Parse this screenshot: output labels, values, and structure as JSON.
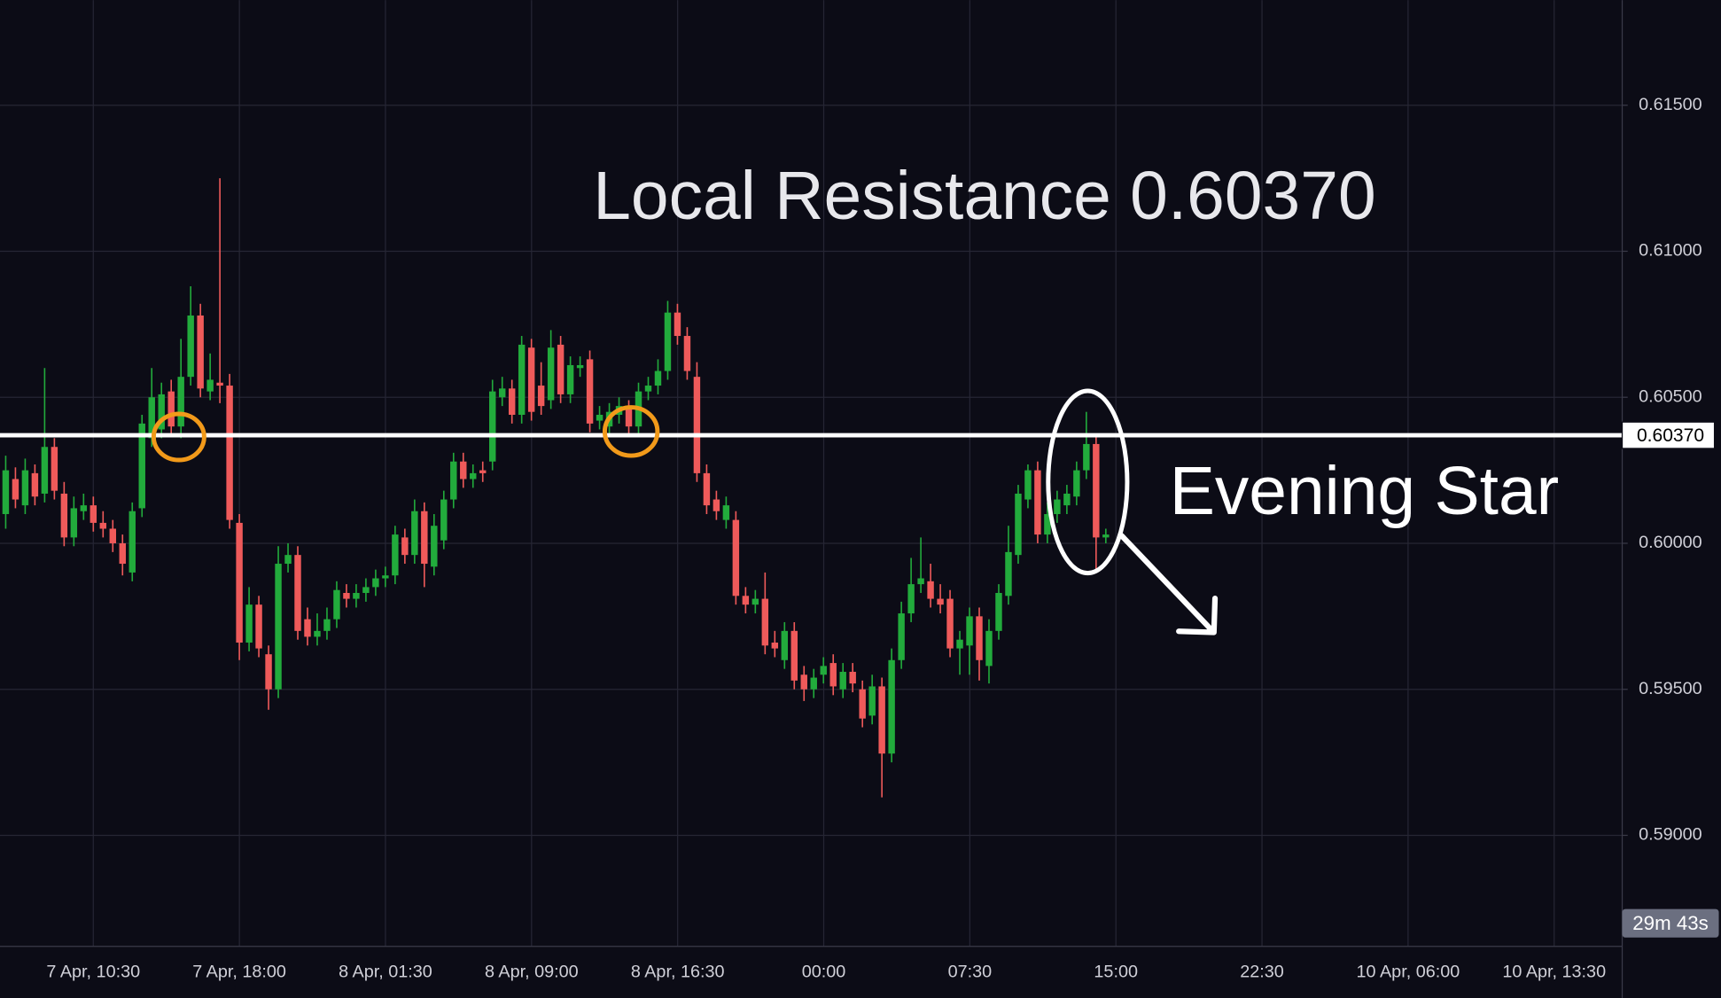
{
  "chart_data": {
    "type": "candlestick",
    "annotations": {
      "title": "Local Resistance 0.60370",
      "pattern": "Evening Star",
      "countdown": "29m 43s"
    },
    "resistance": {
      "value": 0.6037,
      "label": "0.60370"
    },
    "up_color": "#22ab3c",
    "down_color": "#ef5a5a",
    "ylim": [
      0.5862,
      0.6186
    ],
    "yticks": [
      {
        "value": 0.59,
        "label": "0.59000"
      },
      {
        "value": 0.595,
        "label": "0.59500"
      },
      {
        "value": 0.6,
        "label": "0.60000"
      },
      {
        "value": 0.605,
        "label": "0.60500"
      },
      {
        "value": 0.61,
        "label": "0.61000"
      },
      {
        "value": 0.615,
        "label": "0.61500"
      }
    ],
    "xticks": [
      "7 Apr, 10:30",
      "7 Apr, 18:00",
      "8 Apr, 01:30",
      "8 Apr, 09:00",
      "8 Apr, 16:30",
      "00:00",
      "07:30",
      "15:00",
      "22:30",
      "10 Apr, 06:00",
      "10 Apr, 13:30"
    ],
    "grid": true,
    "open": [
      0.601,
      0.6022,
      0.6013,
      0.6024,
      0.6017,
      0.6033,
      0.6017,
      0.6002,
      0.6011,
      0.6013,
      0.6007,
      0.6005,
      0.6,
      0.599,
      0.6012,
      0.6036,
      0.6039,
      0.6052,
      0.604,
      0.6057,
      0.6078,
      0.6052,
      0.6055,
      0.6054,
      0.6007,
      0.5966,
      0.5979,
      0.5962,
      0.595,
      0.5993,
      0.5996,
      0.5974,
      0.5968,
      0.597,
      0.5974,
      0.5983,
      0.5981,
      0.5983,
      0.5985,
      0.5988,
      0.5989,
      0.6002,
      0.5996,
      0.6011,
      0.5992,
      0.6001,
      0.6015,
      0.6028,
      0.6022,
      0.6025,
      0.6028,
      0.605,
      0.6053,
      0.6044,
      0.6067,
      0.6054,
      0.6049,
      0.6068,
      0.6051,
      0.606,
      0.6063,
      0.6042,
      0.604,
      0.6044,
      0.6046,
      0.604,
      0.6052,
      0.6054,
      0.6059,
      0.6079,
      0.6071,
      0.6057,
      0.6024,
      0.6015,
      0.6008,
      0.6008,
      0.5982,
      0.5979,
      0.5981,
      0.5966,
      0.596,
      0.597,
      0.5955,
      0.595,
      0.5955,
      0.5959,
      0.595,
      0.5956,
      0.595,
      0.5941,
      0.5951,
      0.5928,
      0.596,
      0.5976,
      0.5986,
      0.5987,
      0.5981,
      0.5981,
      0.5964,
      0.5965,
      0.5975,
      0.5958,
      0.597,
      0.5982,
      0.5996,
      0.6015,
      0.6025,
      0.6003,
      0.601,
      0.6013,
      0.6016,
      0.6025,
      0.6034,
      0.6002
    ],
    "high": [
      0.603,
      0.6026,
      0.6029,
      0.6027,
      0.606,
      0.6036,
      0.6021,
      0.6016,
      0.6017,
      0.6016,
      0.6011,
      0.6008,
      0.6003,
      0.6014,
      0.6044,
      0.606,
      0.6055,
      0.6056,
      0.607,
      0.6088,
      0.6082,
      0.6065,
      0.6125,
      0.6058,
      0.601,
      0.5985,
      0.5982,
      0.5965,
      0.5999,
      0.6,
      0.5999,
      0.5978,
      0.5976,
      0.5978,
      0.5987,
      0.5986,
      0.5986,
      0.5988,
      0.5991,
      0.5992,
      0.6006,
      0.6005,
      0.6015,
      0.6014,
      0.601,
      0.6018,
      0.6031,
      0.6031,
      0.6027,
      0.6028,
      0.6056,
      0.6057,
      0.6056,
      0.6071,
      0.607,
      0.6062,
      0.6073,
      0.6071,
      0.6064,
      0.6064,
      0.6066,
      0.6047,
      0.6048,
      0.605,
      0.6049,
      0.6055,
      0.6057,
      0.6063,
      0.6083,
      0.6082,
      0.6074,
      0.6062,
      0.6027,
      0.6018,
      0.6016,
      0.6011,
      0.5985,
      0.5984,
      0.599,
      0.597,
      0.5973,
      0.5973,
      0.5958,
      0.5957,
      0.5961,
      0.5962,
      0.5959,
      0.5959,
      0.5953,
      0.5955,
      0.5954,
      0.5964,
      0.598,
      0.5995,
      0.6002,
      0.5993,
      0.5986,
      0.5984,
      0.597,
      0.5978,
      0.5978,
      0.5974,
      0.5986,
      0.6006,
      0.602,
      0.6027,
      0.6028,
      0.6014,
      0.6018,
      0.602,
      0.6028,
      0.6045,
      0.6037,
      0.6005
    ],
    "low": [
      0.6005,
      0.6012,
      0.601,
      0.6013,
      0.6014,
      0.6015,
      0.5999,
      0.5999,
      0.6008,
      0.6004,
      0.6002,
      0.5997,
      0.5989,
      0.5987,
      0.6009,
      0.6033,
      0.6036,
      0.6037,
      0.6036,
      0.6054,
      0.605,
      0.6049,
      0.6048,
      0.6005,
      0.596,
      0.5963,
      0.5961,
      0.5943,
      0.5947,
      0.599,
      0.5967,
      0.5965,
      0.5965,
      0.5967,
      0.5971,
      0.5978,
      0.5978,
      0.598,
      0.5982,
      0.5985,
      0.5986,
      0.5993,
      0.5993,
      0.5985,
      0.5989,
      0.5998,
      0.6012,
      0.6019,
      0.6019,
      0.6021,
      0.6025,
      0.6047,
      0.6041,
      0.6041,
      0.6042,
      0.6044,
      0.6046,
      0.6048,
      0.6048,
      0.6057,
      0.6038,
      0.6039,
      0.6037,
      0.6041,
      0.6037,
      0.6037,
      0.6049,
      0.6051,
      0.6056,
      0.6068,
      0.6056,
      0.6021,
      0.601,
      0.6008,
      0.6005,
      0.5979,
      0.5976,
      0.5976,
      0.5962,
      0.5961,
      0.5957,
      0.595,
      0.5946,
      0.5947,
      0.5952,
      0.5948,
      0.5947,
      0.5949,
      0.5937,
      0.5938,
      0.5913,
      0.5925,
      0.5957,
      0.5973,
      0.5983,
      0.5978,
      0.5976,
      0.5961,
      0.5955,
      0.5955,
      0.5953,
      0.5952,
      0.5967,
      0.5979,
      0.5993,
      0.6012,
      0.6,
      0.6,
      0.6007,
      0.601,
      0.6013,
      0.6022,
      0.599,
      0.6
    ],
    "close": [
      0.6025,
      0.6015,
      0.6025,
      0.6016,
      0.6033,
      0.6018,
      0.6002,
      0.6012,
      0.6013,
      0.6007,
      0.6005,
      0.6,
      0.5993,
      0.6011,
      0.6041,
      0.605,
      0.6051,
      0.604,
      0.6057,
      0.6078,
      0.6053,
      0.6056,
      0.6054,
      0.6008,
      0.5966,
      0.5979,
      0.5964,
      0.595,
      0.5993,
      0.5996,
      0.597,
      0.5968,
      0.597,
      0.5974,
      0.5984,
      0.5981,
      0.5983,
      0.5985,
      0.5988,
      0.5989,
      0.6003,
      0.5996,
      0.6011,
      0.5993,
      0.6006,
      0.6015,
      0.6028,
      0.6022,
      0.6024,
      0.6024,
      0.6052,
      0.6053,
      0.6044,
      0.6068,
      0.6045,
      0.6047,
      0.6067,
      0.6051,
      0.6061,
      0.6061,
      0.6041,
      0.6044,
      0.6045,
      0.6047,
      0.604,
      0.6052,
      0.6054,
      0.6059,
      0.6079,
      0.6071,
      0.6059,
      0.6024,
      0.6013,
      0.6011,
      0.6013,
      0.5982,
      0.5979,
      0.5981,
      0.5965,
      0.5964,
      0.597,
      0.5953,
      0.595,
      0.5954,
      0.5958,
      0.5951,
      0.5956,
      0.5952,
      0.594,
      0.5951,
      0.5928,
      0.596,
      0.5976,
      0.5986,
      0.5988,
      0.5981,
      0.5979,
      0.5964,
      0.5967,
      0.5975,
      0.596,
      0.597,
      0.5983,
      0.5997,
      0.6017,
      0.6025,
      0.6003,
      0.601,
      0.6015,
      0.6017,
      0.6025,
      0.6034,
      0.6002,
      0.6003
    ]
  }
}
